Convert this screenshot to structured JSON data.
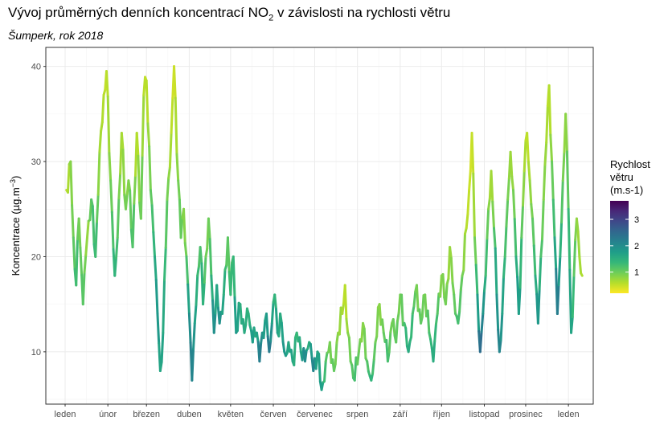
{
  "title_prefix": "Vývoj průměrných denních koncentrací NO",
  "title_sub": "2",
  "title_suffix": " v závislosti na rychlosti větru",
  "subtitle": "Šumperk, rok 2018",
  "chart_data": {
    "type": "line",
    "title": "Vývoj průměrných denních koncentrací NO2 v závislosti na rychlosti větru",
    "subtitle": "Šumperk, rok 2018",
    "ylabel_main": "Koncentrace (µg.m",
    "ylabel_sup": "−3",
    "ylabel_end": ")",
    "ylim": [
      4.5,
      42
    ],
    "yticks": [
      10,
      20,
      30,
      40
    ],
    "xticks": [
      "leden",
      "únor",
      "březen",
      "duben",
      "květen",
      "červen",
      "červenec",
      "srpen",
      "září",
      "říjen",
      "listopad",
      "prosinec",
      "leden"
    ],
    "x_domain": [
      -14,
      383
    ],
    "grid": true,
    "legend": {
      "title_lines": [
        "Rychlost",
        "větru",
        "(m.s-1)"
      ],
      "ticks": [
        1,
        2,
        3
      ],
      "range": [
        0.2,
        3.7
      ],
      "placement": "right"
    },
    "color_scale": [
      "#fde725",
      "#b5de2b",
      "#6ece58",
      "#35b779",
      "#1f9e89",
      "#26828e",
      "#31688e",
      "#3e4989",
      "#482878",
      "#440154"
    ],
    "series": {
      "anchors": [
        [
          1,
          27,
          0.5
        ],
        [
          4,
          30,
          0.8
        ],
        [
          6,
          22,
          1.0
        ],
        [
          8,
          17,
          1.4
        ],
        [
          10,
          24,
          0.9
        ],
        [
          13,
          15,
          1.2
        ],
        [
          16,
          22,
          0.7
        ],
        [
          19,
          26,
          1.1
        ],
        [
          22,
          20,
          1.4
        ],
        [
          25,
          31,
          0.7
        ],
        [
          28,
          37,
          0.6
        ],
        [
          30,
          39.5,
          0.5
        ],
        [
          33,
          28,
          0.9
        ],
        [
          36,
          18,
          1.5
        ],
        [
          38,
          22,
          1.2
        ],
        [
          41,
          33,
          0.6
        ],
        [
          44,
          25,
          1.0
        ],
        [
          46,
          28,
          0.8
        ],
        [
          49,
          21,
          1.3
        ],
        [
          52,
          33,
          0.5
        ],
        [
          55,
          24,
          1.1
        ],
        [
          57,
          37,
          0.6
        ],
        [
          59,
          38.5,
          0.5
        ],
        [
          62,
          27,
          1.0
        ],
        [
          65,
          20,
          1.5
        ],
        [
          67,
          14,
          1.9
        ],
        [
          69,
          8,
          1.6
        ],
        [
          71,
          12,
          1.7
        ],
        [
          74,
          26,
          1.0
        ],
        [
          77,
          33,
          0.6
        ],
        [
          79,
          40,
          0.4
        ],
        [
          82,
          28,
          0.9
        ],
        [
          84,
          22,
          1.1
        ],
        [
          86,
          25,
          0.8
        ],
        [
          88,
          20,
          1.0
        ],
        [
          90,
          14,
          1.9
        ],
        [
          92,
          7,
          2.2
        ],
        [
          94,
          13,
          1.8
        ],
        [
          96,
          18,
          1.4
        ],
        [
          98,
          21,
          1.1
        ],
        [
          100,
          15,
          1.6
        ],
        [
          102,
          20,
          1.0
        ],
        [
          104,
          24,
          0.9
        ],
        [
          106,
          18,
          1.3
        ],
        [
          108,
          12,
          2.1
        ],
        [
          110,
          17,
          1.5
        ],
        [
          112,
          13,
          2.0
        ],
        [
          115,
          16,
          1.6
        ],
        [
          118,
          22,
          1.0
        ],
        [
          120,
          16,
          1.4
        ],
        [
          122,
          20,
          1.2
        ],
        [
          124,
          12,
          1.9
        ],
        [
          127,
          15,
          1.5
        ],
        [
          130,
          12,
          1.6
        ],
        [
          133,
          14,
          1.4
        ],
        [
          136,
          11,
          1.8
        ],
        [
          139,
          12,
          1.5
        ],
        [
          141,
          9,
          2.3
        ],
        [
          143,
          12,
          1.9
        ],
        [
          146,
          14,
          1.6
        ],
        [
          148,
          10,
          2.4
        ],
        [
          150,
          13,
          1.8
        ],
        [
          152,
          16,
          1.3
        ],
        [
          154,
          12,
          1.8
        ],
        [
          156,
          14,
          1.5
        ],
        [
          159,
          10,
          1.9
        ],
        [
          162,
          11,
          1.6
        ],
        [
          165,
          9,
          1.7
        ],
        [
          168,
          12,
          1.3
        ],
        [
          171,
          10,
          1.6
        ],
        [
          174,
          9,
          2.1
        ],
        [
          177,
          11,
          1.4
        ],
        [
          180,
          8,
          2.2
        ],
        [
          183,
          10,
          1.6
        ],
        [
          186,
          6,
          1.8
        ],
        [
          189,
          9,
          1.2
        ],
        [
          192,
          11,
          0.9
        ],
        [
          195,
          8,
          1.1
        ],
        [
          198,
          12,
          0.8
        ],
        [
          201,
          14,
          0.7
        ],
        [
          203,
          17,
          0.5
        ],
        [
          205,
          12,
          0.8
        ],
        [
          207,
          9,
          1.0
        ],
        [
          210,
          7,
          1.3
        ],
        [
          213,
          10,
          1.0
        ],
        [
          216,
          13,
          0.8
        ],
        [
          219,
          9,
          1.1
        ],
        [
          222,
          7,
          1.5
        ],
        [
          225,
          11,
          1.0
        ],
        [
          228,
          15,
          0.8
        ],
        [
          231,
          12,
          1.0
        ],
        [
          234,
          9,
          1.3
        ],
        [
          237,
          13,
          0.9
        ],
        [
          240,
          11,
          1.1
        ],
        [
          243,
          16,
          0.9
        ],
        [
          246,
          13,
          1.2
        ],
        [
          249,
          10,
          1.6
        ],
        [
          252,
          14,
          1.3
        ],
        [
          255,
          17,
          0.9
        ],
        [
          258,
          13,
          1.1
        ],
        [
          261,
          16,
          0.9
        ],
        [
          264,
          12,
          1.2
        ],
        [
          267,
          9,
          1.6
        ],
        [
          270,
          14,
          1.2
        ],
        [
          273,
          18,
          0.8
        ],
        [
          276,
          15,
          1.0
        ],
        [
          279,
          21,
          0.7
        ],
        [
          282,
          16,
          1.0
        ],
        [
          285,
          13,
          1.3
        ],
        [
          288,
          18,
          1.0
        ],
        [
          291,
          23,
          0.6
        ],
        [
          293,
          27,
          0.5
        ],
        [
          295,
          33,
          0.4
        ],
        [
          297,
          22,
          0.8
        ],
        [
          299,
          16,
          1.5
        ],
        [
          301,
          10,
          2.6
        ],
        [
          303,
          14,
          2.0
        ],
        [
          305,
          18,
          1.4
        ],
        [
          307,
          25,
          0.9
        ],
        [
          309,
          29,
          0.6
        ],
        [
          311,
          23,
          1.0
        ],
        [
          313,
          16,
          1.8
        ],
        [
          315,
          10,
          2.2
        ],
        [
          317,
          14,
          1.8
        ],
        [
          319,
          20,
          1.3
        ],
        [
          321,
          26,
          1.0
        ],
        [
          323,
          31,
          0.7
        ],
        [
          325,
          27,
          0.8
        ],
        [
          327,
          20,
          1.4
        ],
        [
          329,
          14,
          1.9
        ],
        [
          331,
          22,
          1.2
        ],
        [
          333,
          29,
          0.7
        ],
        [
          335,
          33,
          0.5
        ],
        [
          337,
          28,
          0.7
        ],
        [
          339,
          24,
          1.0
        ],
        [
          341,
          18,
          1.4
        ],
        [
          343,
          13,
          2.0
        ],
        [
          345,
          20,
          1.3
        ],
        [
          347,
          26,
          0.9
        ],
        [
          349,
          32,
          0.7
        ],
        [
          351,
          38,
          0.5
        ],
        [
          353,
          30,
          0.9
        ],
        [
          355,
          22,
          1.4
        ],
        [
          357,
          14,
          2.4
        ],
        [
          359,
          20,
          1.6
        ],
        [
          361,
          28,
          1.0
        ],
        [
          363,
          35,
          0.7
        ],
        [
          365,
          25,
          1.2
        ],
        [
          367,
          12,
          1.8
        ],
        [
          369,
          18,
          1.2
        ],
        [
          371,
          24,
          0.8
        ],
        [
          373,
          20,
          0.7
        ],
        [
          375,
          18,
          0.6
        ]
      ]
    }
  }
}
